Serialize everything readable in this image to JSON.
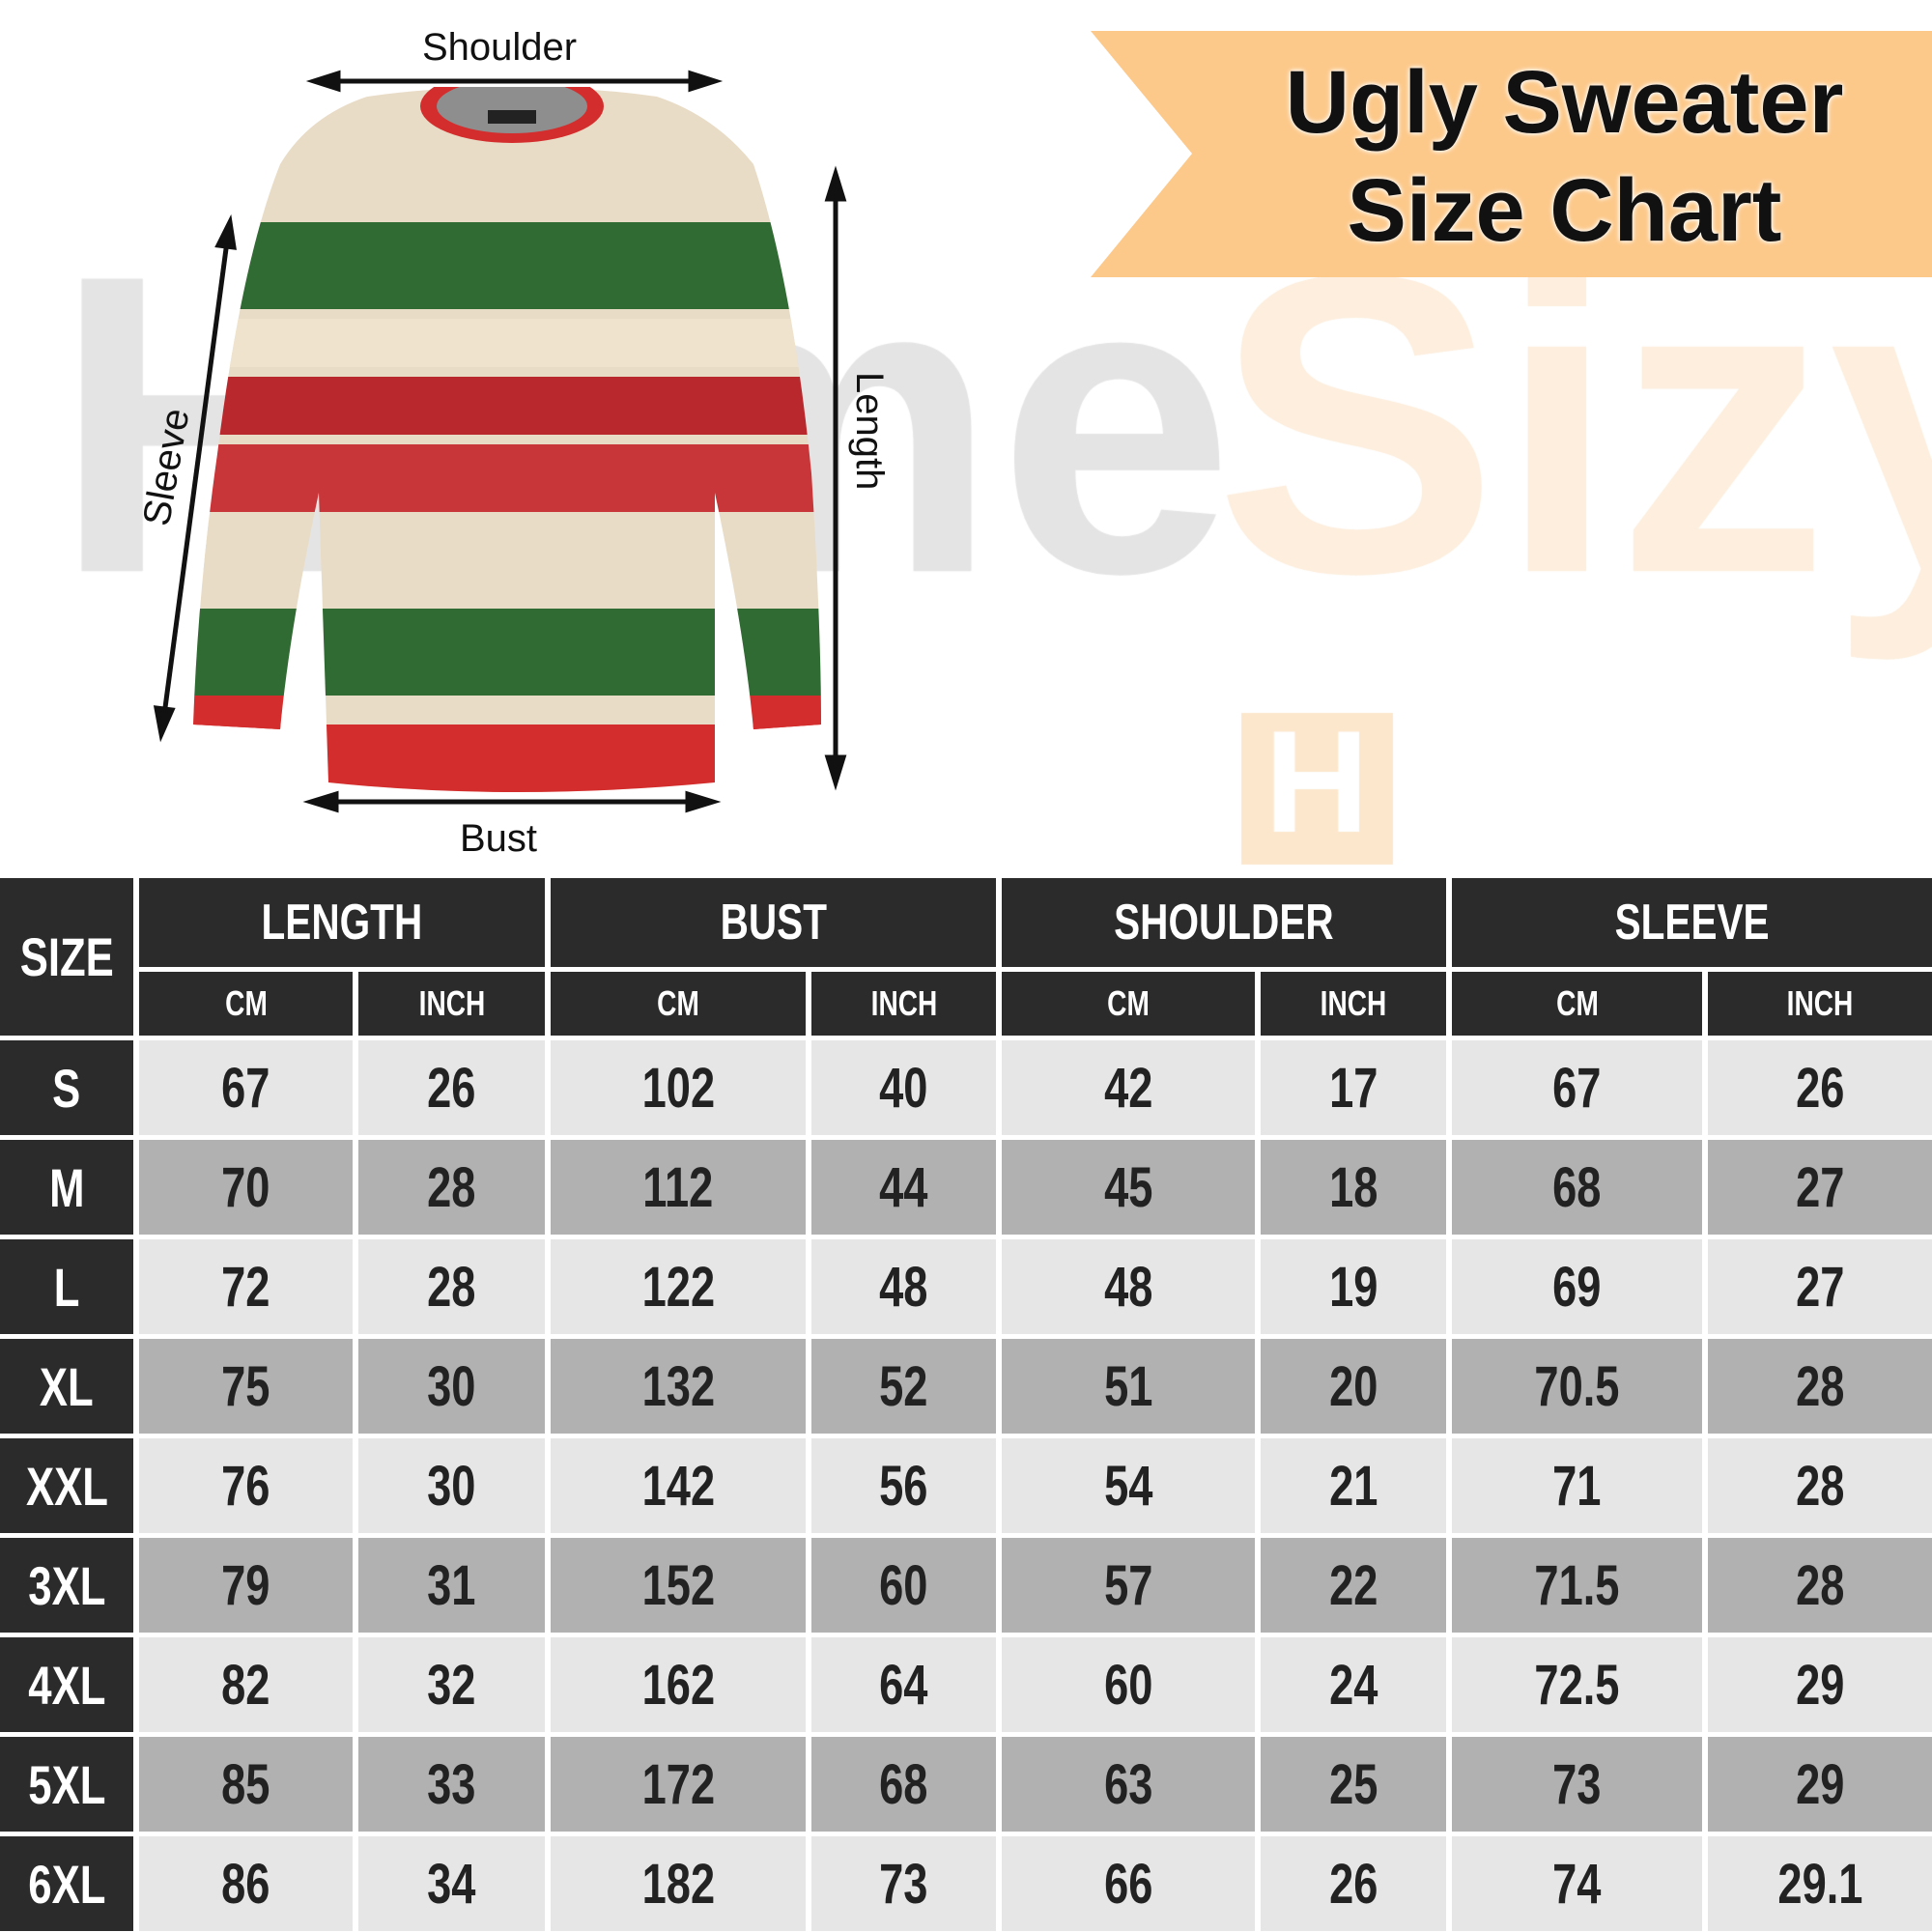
{
  "title_line1": "Ugly Sweater",
  "title_line2": "Size Chart",
  "watermark": "HomeSizy",
  "logo_letter": "H",
  "garment_tag": "HomeSizy",
  "measure_labels": {
    "shoulder": "Shoulder",
    "length": "Length",
    "sleeve": "Sleeve",
    "bust": "Bust"
  },
  "colors": {
    "banner": "#fcc98a",
    "header": "#2b2b2b",
    "row_light": "#e6e6e6",
    "row_dark": "#b1b1b1"
  },
  "table": {
    "size_header": "SIZE",
    "groups": [
      "LENGTH",
      "BUST",
      "SHOULDER",
      "SLEEVE"
    ],
    "units": [
      "CM",
      "INCH",
      "CM",
      "INCH",
      "CM",
      "INCH",
      "CM",
      "INCH"
    ],
    "rows": [
      {
        "size": "S",
        "values": [
          "67",
          "26",
          "102",
          "40",
          "42",
          "17",
          "67",
          "26"
        ]
      },
      {
        "size": "M",
        "values": [
          "70",
          "28",
          "112",
          "44",
          "45",
          "18",
          "68",
          "27"
        ]
      },
      {
        "size": "L",
        "values": [
          "72",
          "28",
          "122",
          "48",
          "48",
          "19",
          "69",
          "27"
        ]
      },
      {
        "size": "XL",
        "values": [
          "75",
          "30",
          "132",
          "52",
          "51",
          "20",
          "70.5",
          "28"
        ]
      },
      {
        "size": "XXL",
        "values": [
          "76",
          "30",
          "142",
          "56",
          "54",
          "21",
          "71",
          "28"
        ]
      },
      {
        "size": "3XL",
        "values": [
          "79",
          "31",
          "152",
          "60",
          "57",
          "22",
          "71.5",
          "28"
        ]
      },
      {
        "size": "4XL",
        "values": [
          "82",
          "32",
          "162",
          "64",
          "60",
          "24",
          "72.5",
          "29"
        ]
      },
      {
        "size": "5XL",
        "values": [
          "85",
          "33",
          "172",
          "68",
          "63",
          "25",
          "73",
          "29"
        ]
      },
      {
        "size": "6XL",
        "values": [
          "86",
          "34",
          "182",
          "73",
          "66",
          "26",
          "74",
          "29.1"
        ]
      }
    ]
  }
}
